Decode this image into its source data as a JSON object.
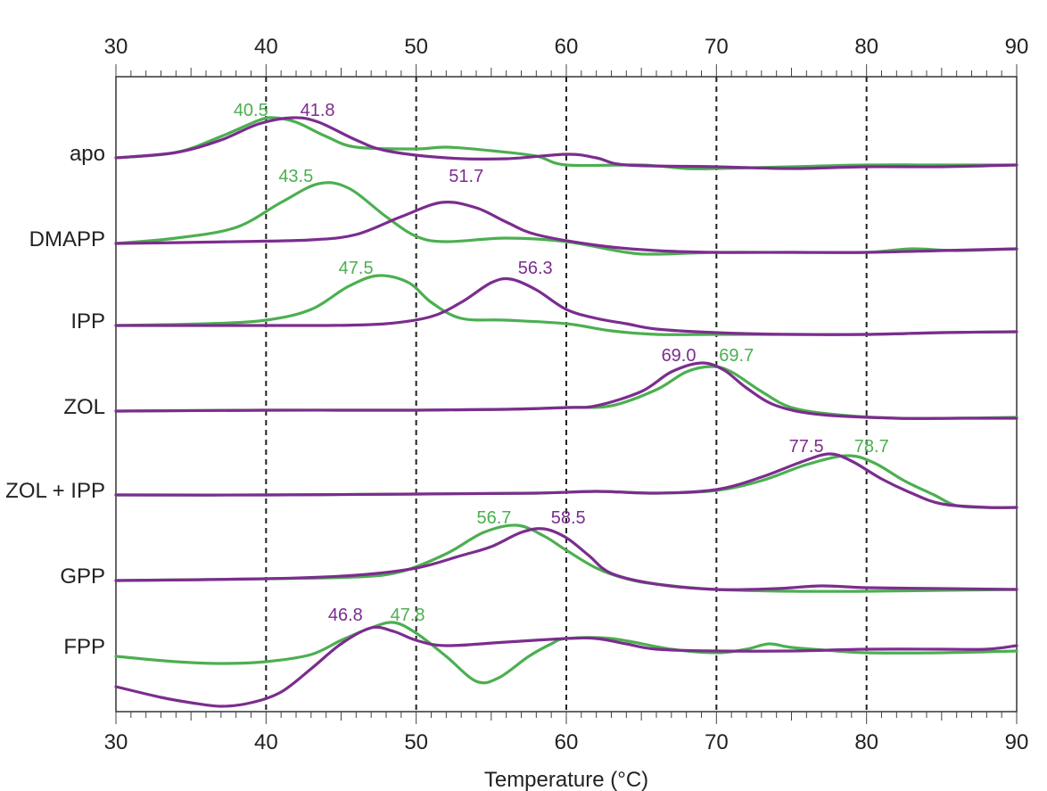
{
  "chart_data": {
    "type": "line",
    "xlabel": "Temperature (°C)",
    "xlim": [
      30,
      90
    ],
    "x_ticks": [
      30,
      40,
      50,
      60,
      70,
      80,
      90
    ],
    "gridlines_x": [
      40,
      50,
      60,
      70,
      80
    ],
    "grid": "dashed vertical lines at 40, 50, 60, 70, 80",
    "legend": "none",
    "colors": {
      "green": "#4caf50",
      "purple": "#7b2d8e"
    },
    "rows": [
      {
        "label": "apo",
        "peaks": [
          {
            "value": "40.5",
            "color": "green"
          },
          {
            "value": "41.8",
            "color": "purple"
          }
        ],
        "green": [
          [
            30,
            0
          ],
          [
            34,
            6
          ],
          [
            37,
            24
          ],
          [
            39.5,
            42
          ],
          [
            40.5,
            45
          ],
          [
            42,
            40
          ],
          [
            44,
            24
          ],
          [
            46,
            12
          ],
          [
            50,
            10
          ],
          [
            52,
            12
          ],
          [
            55,
            8
          ],
          [
            58,
            2
          ],
          [
            60,
            -8
          ],
          [
            65,
            -8
          ],
          [
            68,
            -12
          ],
          [
            70,
            -12
          ],
          [
            75,
            -10
          ],
          [
            80,
            -8
          ],
          [
            85,
            -8
          ],
          [
            90,
            -8
          ]
        ],
        "purple": [
          [
            30,
            0
          ],
          [
            34,
            6
          ],
          [
            37,
            20
          ],
          [
            39.5,
            38
          ],
          [
            41.8,
            45
          ],
          [
            43.5,
            40
          ],
          [
            46,
            20
          ],
          [
            48,
            8
          ],
          [
            52,
            0
          ],
          [
            56,
            -1
          ],
          [
            60,
            4
          ],
          [
            62,
            0
          ],
          [
            64,
            -8
          ],
          [
            70,
            -10
          ],
          [
            75,
            -12
          ],
          [
            80,
            -10
          ],
          [
            85,
            -10
          ],
          [
            90,
            -8
          ]
        ]
      },
      {
        "label": "DMAPP",
        "peaks": [
          {
            "value": "43.5",
            "color": "green"
          },
          {
            "value": "51.7",
            "color": "purple"
          }
        ],
        "green": [
          [
            30,
            0
          ],
          [
            34,
            6
          ],
          [
            38,
            18
          ],
          [
            41,
            46
          ],
          [
            43.5,
            67
          ],
          [
            45.5,
            62
          ],
          [
            48,
            30
          ],
          [
            50,
            8
          ],
          [
            52,
            2
          ],
          [
            56,
            6
          ],
          [
            60,
            2
          ],
          [
            64,
            -10
          ],
          [
            66,
            -12
          ],
          [
            70,
            -10
          ],
          [
            75,
            -10
          ],
          [
            80,
            -10
          ],
          [
            83,
            -6
          ],
          [
            86,
            -8
          ],
          [
            90,
            -6
          ]
        ],
        "purple": [
          [
            30,
            0
          ],
          [
            38,
            2
          ],
          [
            43,
            4
          ],
          [
            46,
            10
          ],
          [
            49,
            30
          ],
          [
            51.7,
            46
          ],
          [
            54,
            40
          ],
          [
            56,
            24
          ],
          [
            58,
            10
          ],
          [
            62,
            -2
          ],
          [
            66,
            -8
          ],
          [
            70,
            -10
          ],
          [
            75,
            -10
          ],
          [
            80,
            -10
          ],
          [
            85,
            -8
          ],
          [
            90,
            -6
          ]
        ]
      },
      {
        "label": "IPP",
        "peaks": [
          {
            "value": "47.5",
            "color": "green"
          },
          {
            "value": "56.3",
            "color": "purple"
          }
        ],
        "green": [
          [
            30,
            0
          ],
          [
            36,
            2
          ],
          [
            40,
            6
          ],
          [
            43,
            18
          ],
          [
            45.5,
            44
          ],
          [
            47.5,
            56
          ],
          [
            49.5,
            48
          ],
          [
            51,
            26
          ],
          [
            53,
            8
          ],
          [
            56,
            6
          ],
          [
            60,
            2
          ],
          [
            63,
            -6
          ],
          [
            66,
            -10
          ],
          [
            70,
            -10
          ],
          [
            75,
            -10
          ],
          [
            80,
            -10
          ],
          [
            85,
            -8
          ],
          [
            90,
            -7
          ]
        ],
        "purple": [
          [
            30,
            0
          ],
          [
            38,
            0
          ],
          [
            44,
            0
          ],
          [
            48,
            2
          ],
          [
            51,
            10
          ],
          [
            53,
            26
          ],
          [
            55,
            48
          ],
          [
            56.3,
            52
          ],
          [
            58,
            40
          ],
          [
            60,
            18
          ],
          [
            62,
            8
          ],
          [
            64,
            2
          ],
          [
            66,
            -4
          ],
          [
            70,
            -8
          ],
          [
            75,
            -10
          ],
          [
            80,
            -10
          ],
          [
            85,
            -8
          ],
          [
            90,
            -7
          ]
        ]
      },
      {
        "label": "ZOL",
        "peaks": [
          {
            "value": "69.0",
            "color": "purple"
          },
          {
            "value": "69.7",
            "color": "green"
          }
        ],
        "green": [
          [
            30,
            0
          ],
          [
            40,
            1
          ],
          [
            50,
            1
          ],
          [
            56,
            2
          ],
          [
            60,
            4
          ],
          [
            63,
            6
          ],
          [
            66,
            24
          ],
          [
            68,
            44
          ],
          [
            69.7,
            50
          ],
          [
            71,
            44
          ],
          [
            73,
            22
          ],
          [
            75,
            4
          ],
          [
            78,
            -4
          ],
          [
            82,
            -8
          ],
          [
            86,
            -8
          ],
          [
            90,
            -7
          ]
        ],
        "purple": [
          [
            30,
            0
          ],
          [
            40,
            1
          ],
          [
            50,
            1
          ],
          [
            56,
            2
          ],
          [
            60,
            4
          ],
          [
            62,
            6
          ],
          [
            65,
            22
          ],
          [
            67,
            44
          ],
          [
            69,
            54
          ],
          [
            70.5,
            46
          ],
          [
            72,
            26
          ],
          [
            74,
            6
          ],
          [
            77,
            -4
          ],
          [
            82,
            -8
          ],
          [
            86,
            -8
          ],
          [
            90,
            -8
          ]
        ]
      },
      {
        "label": "ZOL + IPP",
        "peaks": [
          {
            "value": "77.5",
            "color": "purple"
          },
          {
            "value": "78.7",
            "color": "green"
          }
        ],
        "green": [
          [
            30,
            0
          ],
          [
            40,
            0
          ],
          [
            50,
            1
          ],
          [
            58,
            2
          ],
          [
            62,
            4
          ],
          [
            66,
            2
          ],
          [
            70,
            5
          ],
          [
            73,
            16
          ],
          [
            76,
            34
          ],
          [
            78.7,
            44
          ],
          [
            80.5,
            36
          ],
          [
            82.5,
            16
          ],
          [
            84.5,
            0
          ],
          [
            86,
            -12
          ],
          [
            88,
            -14
          ],
          [
            90,
            -14
          ]
        ],
        "purple": [
          [
            30,
            0
          ],
          [
            40,
            0
          ],
          [
            50,
            1
          ],
          [
            58,
            2
          ],
          [
            62,
            4
          ],
          [
            66,
            2
          ],
          [
            70,
            6
          ],
          [
            73,
            20
          ],
          [
            75.5,
            36
          ],
          [
            77.5,
            46
          ],
          [
            79,
            38
          ],
          [
            81,
            18
          ],
          [
            83,
            2
          ],
          [
            85,
            -10
          ],
          [
            88,
            -14
          ],
          [
            90,
            -14
          ]
        ]
      },
      {
        "label": "GPP",
        "peaks": [
          {
            "value": "56.7",
            "color": "green"
          },
          {
            "value": "58.5",
            "color": "purple"
          }
        ],
        "green": [
          [
            30,
            0
          ],
          [
            40,
            2
          ],
          [
            46,
            4
          ],
          [
            49,
            10
          ],
          [
            52,
            30
          ],
          [
            54.5,
            54
          ],
          [
            56.7,
            62
          ],
          [
            58.5,
            50
          ],
          [
            60,
            34
          ],
          [
            62,
            14
          ],
          [
            64,
            2
          ],
          [
            66,
            -4
          ],
          [
            70,
            -10
          ],
          [
            75,
            -12
          ],
          [
            80,
            -12
          ],
          [
            85,
            -11
          ],
          [
            90,
            -10
          ]
        ],
        "purple": [
          [
            30,
            0
          ],
          [
            40,
            2
          ],
          [
            46,
            6
          ],
          [
            50,
            14
          ],
          [
            53,
            28
          ],
          [
            55,
            38
          ],
          [
            57,
            54
          ],
          [
            58.5,
            58
          ],
          [
            60,
            48
          ],
          [
            61.5,
            28
          ],
          [
            63,
            8
          ],
          [
            66,
            -4
          ],
          [
            70,
            -10
          ],
          [
            74,
            -9
          ],
          [
            77,
            -6
          ],
          [
            80,
            -8
          ],
          [
            85,
            -9
          ],
          [
            90,
            -10
          ]
        ]
      },
      {
        "label": "FPP",
        "peaks": [
          {
            "value": "46.8",
            "color": "purple"
          },
          {
            "value": "47.8",
            "color": "green"
          }
        ],
        "green": [
          [
            30,
            -6
          ],
          [
            34,
            -12
          ],
          [
            37,
            -14
          ],
          [
            40,
            -12
          ],
          [
            43,
            -4
          ],
          [
            45,
            12
          ],
          [
            47,
            26
          ],
          [
            48.5,
            32
          ],
          [
            50,
            20
          ],
          [
            52,
            -6
          ],
          [
            54,
            -34
          ],
          [
            55.5,
            -30
          ],
          [
            57.5,
            -6
          ],
          [
            59,
            8
          ],
          [
            60,
            14
          ],
          [
            63,
            14
          ],
          [
            67,
            2
          ],
          [
            70,
            -2
          ],
          [
            72,
            2
          ],
          [
            73.5,
            8
          ],
          [
            75,
            4
          ],
          [
            78,
            0
          ],
          [
            80,
            -2
          ],
          [
            85,
            -2
          ],
          [
            90,
            0
          ]
        ],
        "purple": [
          [
            30,
            -40
          ],
          [
            33,
            -52
          ],
          [
            35,
            -58
          ],
          [
            37,
            -62
          ],
          [
            39,
            -58
          ],
          [
            41,
            -46
          ],
          [
            43,
            -20
          ],
          [
            45,
            8
          ],
          [
            47,
            26
          ],
          [
            48.5,
            22
          ],
          [
            50,
            12
          ],
          [
            52,
            6
          ],
          [
            56,
            10
          ],
          [
            60,
            14
          ],
          [
            62,
            14
          ],
          [
            64,
            8
          ],
          [
            66,
            2
          ],
          [
            70,
            0
          ],
          [
            75,
            0
          ],
          [
            80,
            2
          ],
          [
            85,
            2
          ],
          [
            88,
            2
          ],
          [
            90,
            6
          ]
        ]
      }
    ]
  }
}
